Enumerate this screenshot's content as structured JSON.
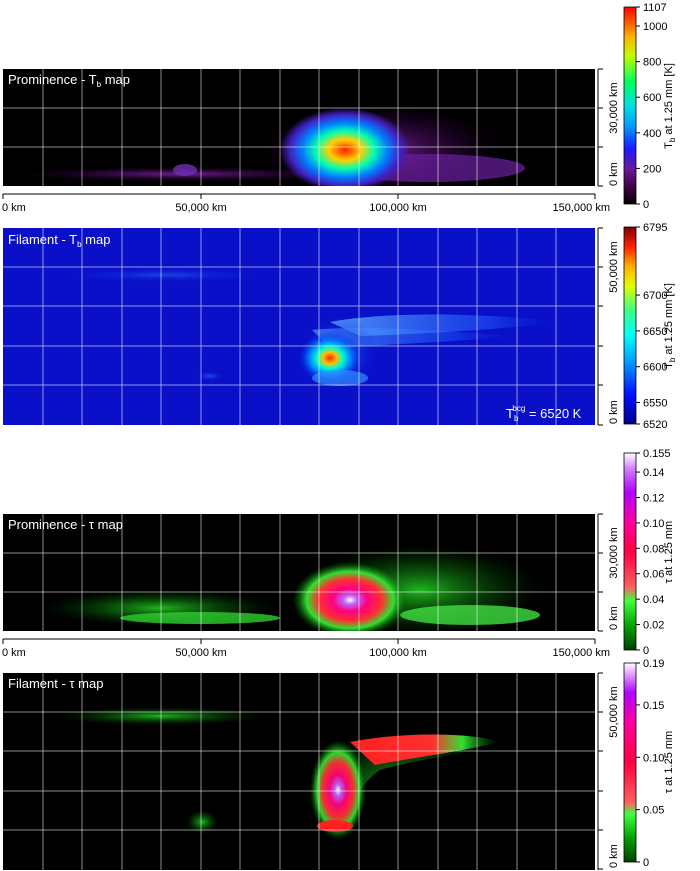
{
  "panels": [
    {
      "title_main": "Prominence - T",
      "title_sub": "b",
      "title_tail": " map",
      "y_ticks": [
        "30,000 km",
        "0 km"
      ],
      "x_ticks": [
        "0 km",
        "50,000 km",
        "100,000 km",
        "150,000 km"
      ]
    },
    {
      "title_main": "Filament - T",
      "title_sub": "b",
      "title_tail": " map",
      "y_ticks": [
        "50,000 km",
        "0 km"
      ],
      "bg_label_main": "T",
      "bg_label_sub": "b",
      "bg_label_sup": "bcg",
      "bg_label_tail": " = 6520 K"
    },
    {
      "title_main": "Prominence - τ map",
      "y_ticks": [
        "30,000 km",
        "0 km"
      ],
      "x_ticks": [
        "0 km",
        "50,000 km",
        "100,000 km",
        "150,000 km"
      ]
    },
    {
      "title_main": "Filament - τ map",
      "y_ticks": [
        "50,000 km",
        "0 km"
      ]
    }
  ],
  "colorbars": [
    {
      "label_main": "T",
      "label_sub": "b",
      "label_tail": " at 1.25 mm [K]",
      "ticks": [
        "1107",
        "1000",
        "800",
        "600",
        "400",
        "200",
        "0"
      ],
      "tick_values": [
        1107,
        1000,
        800,
        600,
        400,
        200,
        0
      ],
      "max": 1107
    },
    {
      "label_main": "T",
      "label_sub": "b",
      "label_tail": " at 1.25 mm [K]",
      "ticks": [
        "6795",
        "6700",
        "6650",
        "6600",
        "6550",
        "6520"
      ],
      "tick_values": [
        6795,
        6700,
        6650,
        6600,
        6550,
        6520
      ],
      "min": 6520,
      "max": 6795
    },
    {
      "label_main": "τ at 1.25 mm",
      "ticks": [
        "0.155",
        "0.14",
        "0.12",
        "0.10",
        "0.08",
        "0.06",
        "0.04",
        "0.02",
        "0"
      ],
      "tick_values": [
        0.155,
        0.14,
        0.12,
        0.1,
        0.08,
        0.06,
        0.04,
        0.02,
        0
      ],
      "max": 0.155
    },
    {
      "label_main": "τ at 1.25 mm",
      "ticks": [
        "0.19",
        "0.15",
        "0.10",
        "0.05",
        "0"
      ],
      "tick_values": [
        0.19,
        0.15,
        0.1,
        0.05,
        0
      ],
      "max": 0.19
    }
  ]
}
